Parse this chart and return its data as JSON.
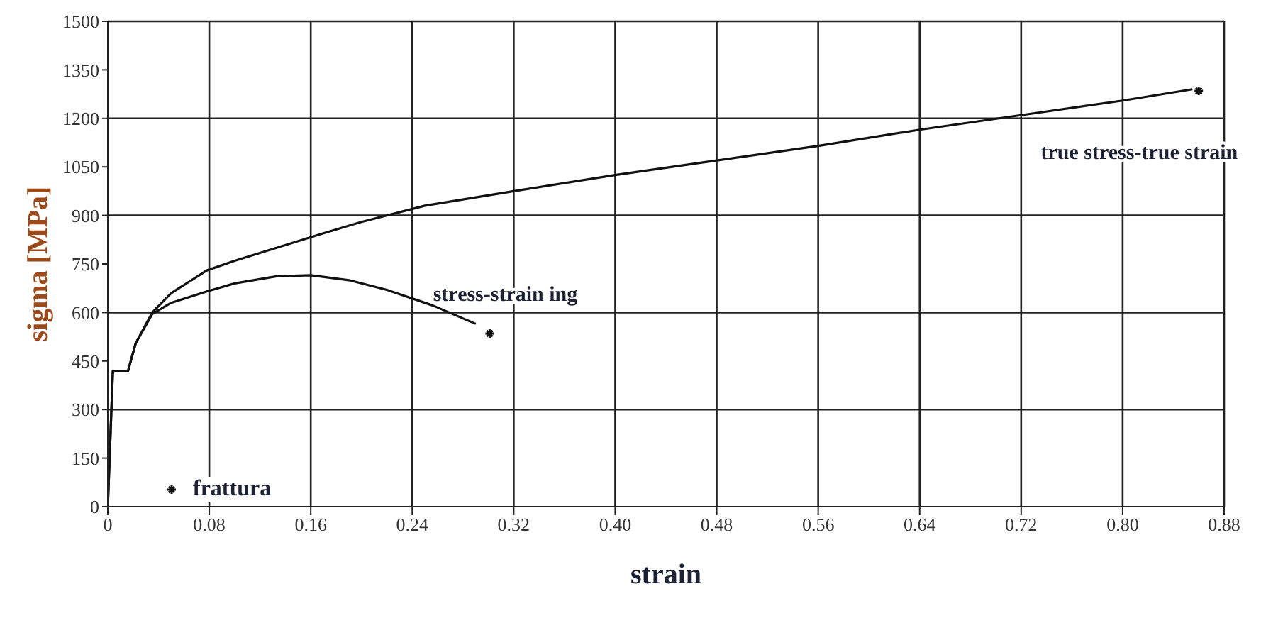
{
  "chart_data": {
    "type": "line",
    "xlabel": "strain",
    "ylabel": "sigma [MPa]",
    "xlim": [
      0,
      0.88
    ],
    "xticks": [
      0,
      0.08,
      0.16,
      0.24,
      0.32,
      {
        "value": 0.4,
        "label": "0.40"
      },
      0.48,
      0.56,
      0.64,
      0.72,
      {
        "value": 0.8,
        "label": "0.80"
      },
      0.88
    ],
    "ylim": [
      0,
      1500
    ],
    "yticks": [
      0,
      150,
      300,
      450,
      600,
      750,
      900,
      1050,
      1200,
      1350,
      1500
    ],
    "grid": true,
    "legend": "bottom left",
    "marker": "none",
    "line_style": "solid",
    "series": [
      {
        "name": "stress-strain ing",
        "color": "#111111",
        "x": [
          0,
          0.004,
          0.016,
          0.022,
          0.035,
          0.05,
          0.078,
          0.1,
          0.133,
          0.16,
          0.19,
          0.22,
          0.256,
          0.29
        ],
        "values": [
          0,
          420,
          420,
          505,
          595,
          630,
          665,
          690,
          712,
          715,
          700,
          670,
          622,
          565
        ]
      },
      {
        "name": "true stress-true strain",
        "color": "#111111",
        "x": [
          0,
          0.004,
          0.016,
          0.022,
          0.035,
          0.05,
          0.078,
          0.1,
          0.133,
          0.17,
          0.2,
          0.25,
          0.32,
          0.4,
          0.48,
          0.56,
          0.64,
          0.72,
          0.8,
          0.855
        ],
        "values": [
          0,
          420,
          420,
          505,
          600,
          660,
          730,
          760,
          800,
          845,
          880,
          930,
          975,
          1025,
          1070,
          1115,
          1165,
          1210,
          1255,
          1290
        ]
      },
      {
        "name": "frattura",
        "type": "scatter",
        "marker": "cross",
        "color": "#111111",
        "x": [
          0.301,
          0.86
        ],
        "values": [
          535,
          1285
        ]
      }
    ]
  }
}
